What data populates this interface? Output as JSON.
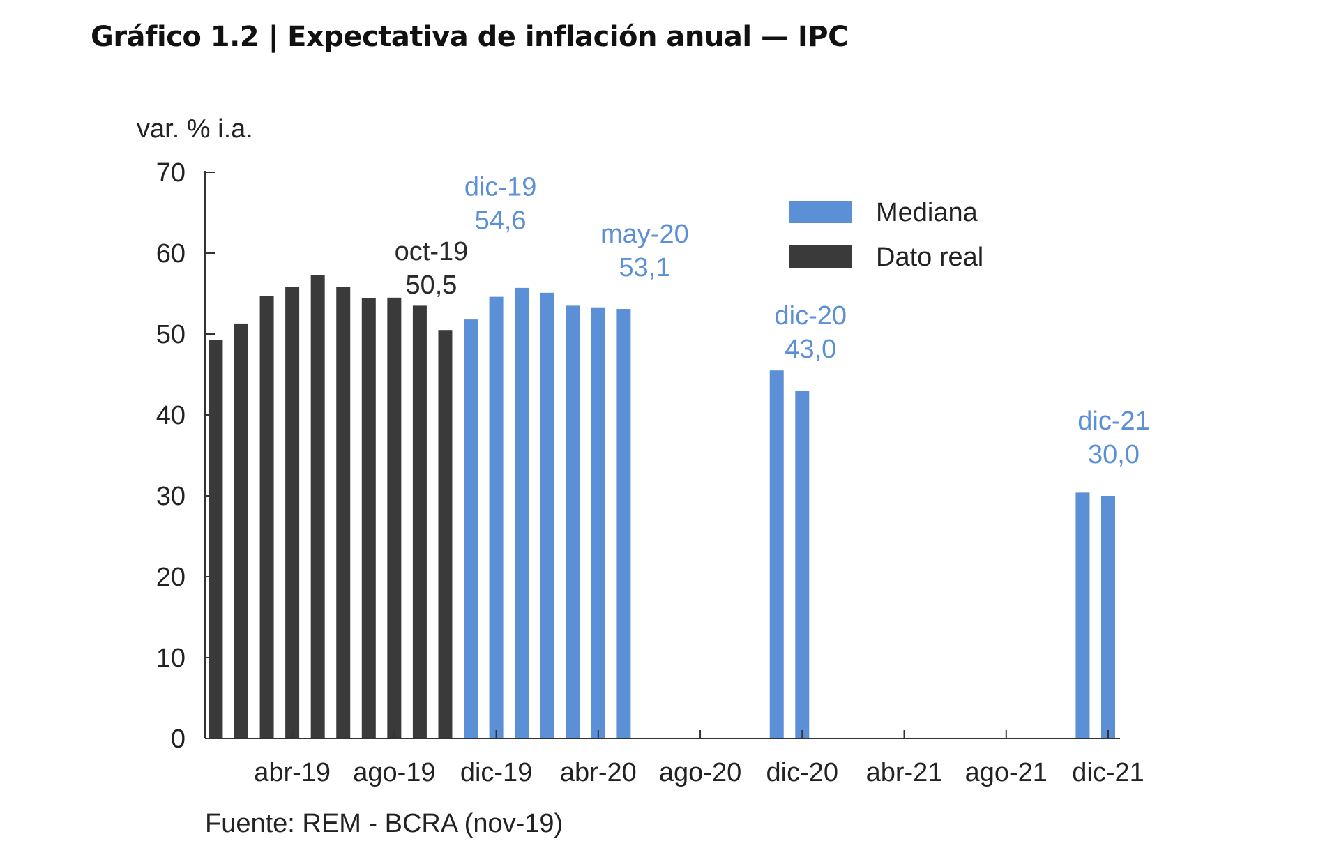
{
  "title": "Gráfico 1.2 | Expectativa de inflación anual — IPC",
  "source": "Fuente: REM - BCRA (nov-19)",
  "chart_data": {
    "type": "bar",
    "ylabel": "var. % i.a.",
    "ylim": [
      0,
      70
    ],
    "yticks": [
      0,
      10,
      20,
      30,
      40,
      50,
      60,
      70
    ],
    "x_start": "feb-19",
    "x_end": "dic-21",
    "xtick_labels": [
      "abr-19",
      "ago-19",
      "dic-19",
      "abr-20",
      "ago-20",
      "dic-20",
      "abr-21",
      "ago-21",
      "dic-21"
    ],
    "legend": {
      "position": "top-right",
      "entries": [
        "Mediana",
        "Dato real"
      ]
    },
    "colors": {
      "mediana": "#5b8fd6",
      "dato_real": "#3a3a3a"
    },
    "series": [
      {
        "name": "Dato real",
        "points": [
          {
            "x": "ene-19",
            "value": 49.3
          },
          {
            "x": "feb-19",
            "value": 51.3
          },
          {
            "x": "mar-19",
            "value": 54.7
          },
          {
            "x": "abr-19",
            "value": 55.8
          },
          {
            "x": "may-19",
            "value": 57.3
          },
          {
            "x": "jun-19",
            "value": 55.8
          },
          {
            "x": "jul-19",
            "value": 54.4
          },
          {
            "x": "ago-19",
            "value": 54.5
          },
          {
            "x": "sep-19",
            "value": 53.5
          },
          {
            "x": "oct-19",
            "value": 50.5
          }
        ]
      },
      {
        "name": "Mediana",
        "points": [
          {
            "x": "nov-19",
            "value": 51.8
          },
          {
            "x": "dic-19",
            "value": 54.6
          },
          {
            "x": "ene-20",
            "value": 55.7
          },
          {
            "x": "feb-20",
            "value": 55.1
          },
          {
            "x": "mar-20",
            "value": 53.5
          },
          {
            "x": "abr-20",
            "value": 53.3
          },
          {
            "x": "may-20",
            "value": 53.1
          },
          {
            "x": "nov-20",
            "value": 45.5
          },
          {
            "x": "dic-20",
            "value": 43.0
          },
          {
            "x": "nov-21",
            "value": 30.4
          },
          {
            "x": "dic-21",
            "value": 30.0
          }
        ]
      }
    ],
    "annotations": [
      {
        "label": "oct-19",
        "value": "50,5",
        "series": "Dato real"
      },
      {
        "label": "dic-19",
        "value": "54,6",
        "series": "Mediana"
      },
      {
        "label": "may-20",
        "value": "53,1",
        "series": "Mediana"
      },
      {
        "label": "dic-20",
        "value": "43,0",
        "series": "Mediana"
      },
      {
        "label": "dic-21",
        "value": "30,0",
        "series": "Mediana"
      }
    ]
  }
}
